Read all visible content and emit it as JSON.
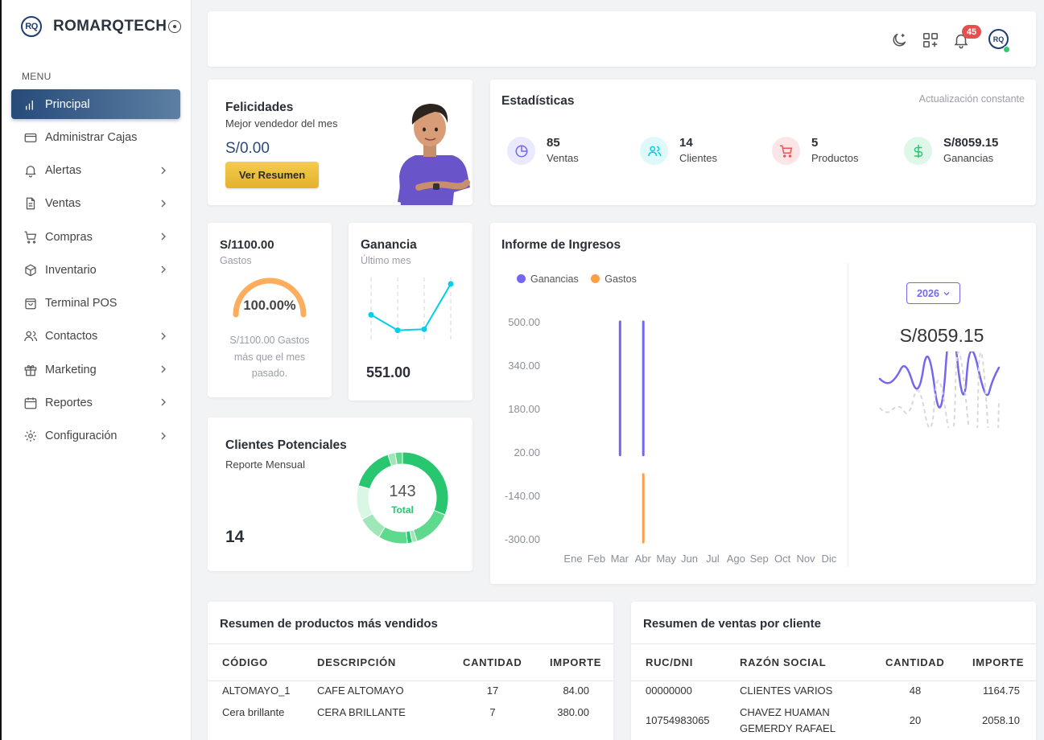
{
  "brand": {
    "logo": "RQ",
    "name": "ROMARQTECH"
  },
  "menu": {
    "label": "MENU",
    "items": [
      {
        "label": "Principal",
        "icon": "bar-chart-icon",
        "active": true,
        "chevron": false
      },
      {
        "label": "Administrar Cajas",
        "icon": "card-icon",
        "chevron": false
      },
      {
        "label": "Alertas",
        "icon": "bell-icon",
        "chevron": true
      },
      {
        "label": "Ventas",
        "icon": "document-icon",
        "chevron": true
      },
      {
        "label": "Compras",
        "icon": "cart-icon",
        "chevron": true
      },
      {
        "label": "Inventario",
        "icon": "box-icon",
        "chevron": true
      },
      {
        "label": "Terminal POS",
        "icon": "bag-icon",
        "chevron": false
      },
      {
        "label": "Contactos",
        "icon": "users-icon",
        "chevron": true
      },
      {
        "label": "Marketing",
        "icon": "gift-icon",
        "chevron": true
      },
      {
        "label": "Reportes",
        "icon": "calendar-icon",
        "chevron": true
      },
      {
        "label": "Configuración",
        "icon": "gear-icon",
        "chevron": true
      }
    ]
  },
  "topbar": {
    "notifications": "45",
    "avatar": "RQ"
  },
  "congrats": {
    "title": "Felicidades",
    "subtitle": "Mejor vendedor del mes",
    "amount": "S/0.00",
    "button": "Ver Resumen"
  },
  "stats": {
    "title": "Estadísticas",
    "note": "Actualización constante",
    "items": [
      {
        "value": "85",
        "label": "Ventas",
        "icon": "pie-icon",
        "color": "#7367f0"
      },
      {
        "value": "14",
        "label": "Clientes",
        "icon": "users-icon",
        "color": "#00cfe8"
      },
      {
        "value": "5",
        "label": "Productos",
        "icon": "cart-icon",
        "color": "#ea5455"
      },
      {
        "value": "S/8059.15",
        "label": "Ganancias",
        "icon": "dollar-icon",
        "color": "#28c76f"
      }
    ]
  },
  "gastos": {
    "amount": "S/1100.00",
    "label": "Gastos",
    "percent": "100.00%",
    "fill": 1.0,
    "description": "S/1100.00 Gastos más que el mes pasado."
  },
  "ganancia": {
    "title": "Ganancia",
    "subtitle": "Último mes",
    "value": "551.00",
    "sparkline": [
      0.4,
      0.1,
      0.12,
      1.0
    ]
  },
  "clientes": {
    "title": "Clientes Potenciales",
    "subtitle": "Reporte Mensual",
    "value": "14",
    "total_value": "143",
    "total_label": "Total",
    "segments": [
      {
        "value": 36,
        "color": "#28c76f"
      },
      {
        "value": 16,
        "color": "#5fd98e"
      },
      {
        "value": 2,
        "color": "#9fe6b8"
      },
      {
        "value": 2,
        "color": "#28c76f"
      },
      {
        "value": 12,
        "color": "#5fd98e"
      },
      {
        "value": 10,
        "color": "#9fe6b8"
      },
      {
        "value": 14,
        "color": "#d9f7e4"
      },
      {
        "value": 18,
        "color": "#28c76f"
      },
      {
        "value": 3,
        "color": "#9fe6b8"
      },
      {
        "value": 3,
        "color": "#5fd98e"
      }
    ]
  },
  "informe": {
    "title": "Informe de Ingresos",
    "year": "2026",
    "total": "S/8059.15"
  },
  "chart_data": {
    "type": "bar",
    "title": "Informe de Ingresos",
    "categories": [
      "Ene",
      "Feb",
      "Mar",
      "Abr",
      "May",
      "Jun",
      "Jul",
      "Ago",
      "Sep",
      "Oct",
      "Nov",
      "Dic"
    ],
    "yticks": [
      "500.00",
      "340.00",
      "180.00",
      "20.00",
      "-140.00",
      "-300.00"
    ],
    "ylim": [
      -300,
      500
    ],
    "series": [
      {
        "name": "Ganancias",
        "color": "#7367f0",
        "values": [
          0,
          0,
          500,
          500,
          0,
          0,
          0,
          0,
          0,
          0,
          0,
          0
        ]
      },
      {
        "name": "Gastos",
        "color": "#ff9f43",
        "values": [
          0,
          0,
          0,
          -250,
          0,
          0,
          0,
          0,
          0,
          0,
          0,
          0
        ]
      }
    ],
    "legend": "top-left"
  },
  "productos": {
    "title": "Resumen de productos más vendidos",
    "columns": [
      "CÓDIGO",
      "DESCRIPCIÓN",
      "CANTIDAD",
      "IMPORTE"
    ],
    "rows": [
      [
        "ALTOMAYO_1",
        "CAFE ALTOMAYO",
        "17",
        "84.00"
      ],
      [
        "Cera brillante",
        "CERA BRILLANTE",
        "7",
        "380.00"
      ]
    ]
  },
  "ventas_cliente": {
    "title": "Resumen de ventas por cliente",
    "columns": [
      "RUC/DNI",
      "RAZÓN SOCIAL",
      "CANTIDAD",
      "IMPORTE"
    ],
    "rows": [
      [
        "00000000",
        "CLIENTES VARIOS",
        "48",
        "1164.75"
      ],
      [
        "10754983065",
        "CHAVEZ HUAMAN GEMERDY RAFAEL",
        "20",
        "2058.10"
      ]
    ]
  }
}
